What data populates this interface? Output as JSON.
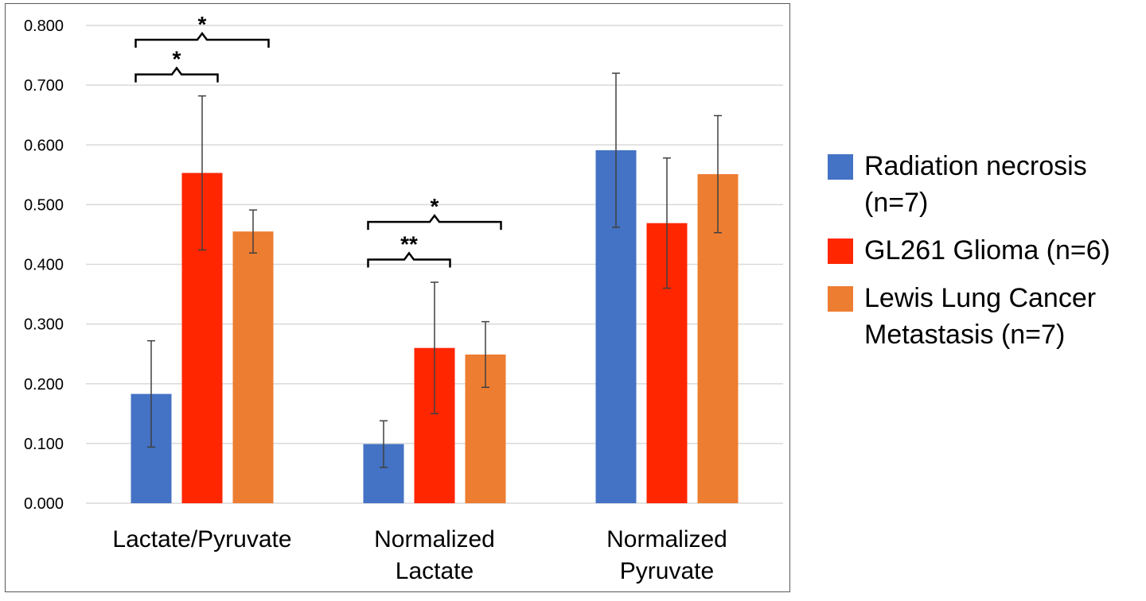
{
  "chart_data": {
    "type": "bar",
    "categories": [
      [
        "Lactate/Pyruvate"
      ],
      [
        "Normalized",
        "Lactate"
      ],
      [
        "Normalized",
        "Pyruvate"
      ]
    ],
    "series": [
      {
        "name": "Radiation necrosis (n=7)",
        "color": "#4472C4",
        "values": [
          0.183,
          0.099,
          0.591
        ],
        "errors": [
          0.089,
          0.039,
          0.129
        ]
      },
      {
        "name": "GL261 Glioma (n=6)",
        "color": "#FF2600",
        "values": [
          0.553,
          0.26,
          0.469
        ],
        "errors": [
          0.129,
          0.11,
          0.109
        ]
      },
      {
        "name": "Lewis Lung Cancer Metastasis (n=7)",
        "color": "#ED7D31",
        "values": [
          0.455,
          0.249,
          0.551
        ],
        "errors": [
          0.036,
          0.055,
          0.098
        ]
      }
    ],
    "ylim": [
      0,
      0.8
    ],
    "yticks": [
      "0.000",
      "0.100",
      "0.200",
      "0.300",
      "0.400",
      "0.500",
      "0.600",
      "0.700",
      "0.800"
    ],
    "grid": true,
    "legend_position": "right",
    "significance": [
      {
        "category": 0,
        "from_series": 0,
        "to_series": 2,
        "label": "*",
        "y": 0.776
      },
      {
        "category": 0,
        "from_series": 0,
        "to_series": 1,
        "label": "*",
        "y": 0.718
      },
      {
        "category": 1,
        "from_series": 0,
        "to_series": 2,
        "label": "*",
        "y": 0.471
      },
      {
        "category": 1,
        "from_series": 0,
        "to_series": 1,
        "label": "**",
        "y": 0.408
      }
    ]
  },
  "legend": {
    "items": [
      {
        "label": "Radiation necrosis (n=7)",
        "color": "#4472C4"
      },
      {
        "label": "GL261 Glioma (n=6)",
        "color": "#FF2600"
      },
      {
        "label": "Lewis Lung Cancer Metastasis (n=7)",
        "color": "#ED7D31"
      }
    ]
  }
}
